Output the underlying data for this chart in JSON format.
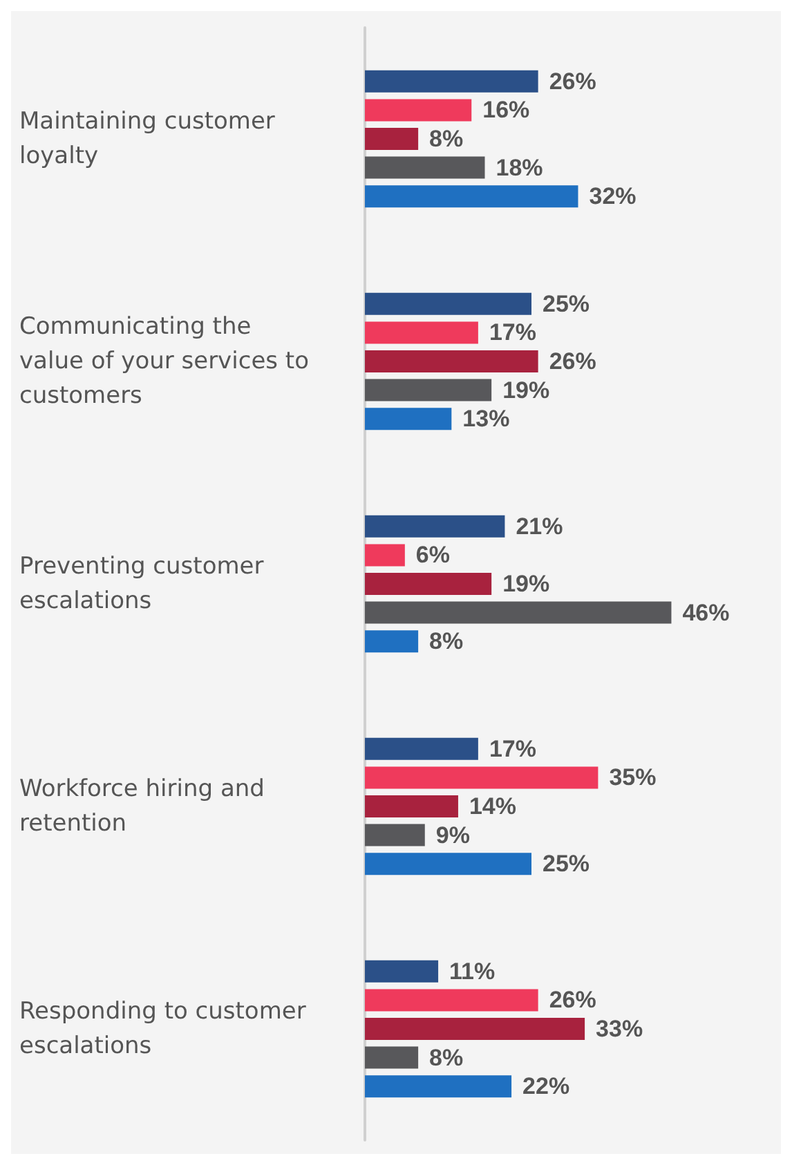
{
  "chart_data": {
    "type": "bar",
    "orientation": "horizontal",
    "categories": [
      "Maintaining customer loyalty",
      "Communicating the value of your services to customers",
      "Preventing customer escalations",
      "Workforce hiring and retention",
      "Responding to customer escalations"
    ],
    "series": [
      {
        "color": "#2b5088",
        "values": [
          26,
          25,
          21,
          17,
          11
        ],
        "value_labels": [
          "26%",
          "25%",
          "21%",
          "17%",
          "11%"
        ]
      },
      {
        "color": "#ef3a5c",
        "values": [
          16,
          17,
          6,
          35,
          26
        ],
        "value_labels": [
          "16%",
          "17%",
          "6%",
          "35%",
          "26%"
        ]
      },
      {
        "color": "#a8223e",
        "values": [
          8,
          26,
          19,
          14,
          33
        ],
        "value_labels": [
          "8%",
          "26%",
          "19%",
          "14%",
          "33%"
        ]
      },
      {
        "color": "#58585b",
        "values": [
          18,
          19,
          46,
          9,
          8
        ],
        "value_labels": [
          "18%",
          "19%",
          "46%",
          "9%",
          "8%"
        ]
      },
      {
        "color": "#1f70c1",
        "values": [
          32,
          13,
          8,
          25,
          22
        ],
        "value_labels": [
          "32%",
          "13%",
          "8%",
          "25%",
          "22%"
        ]
      }
    ]
  }
}
